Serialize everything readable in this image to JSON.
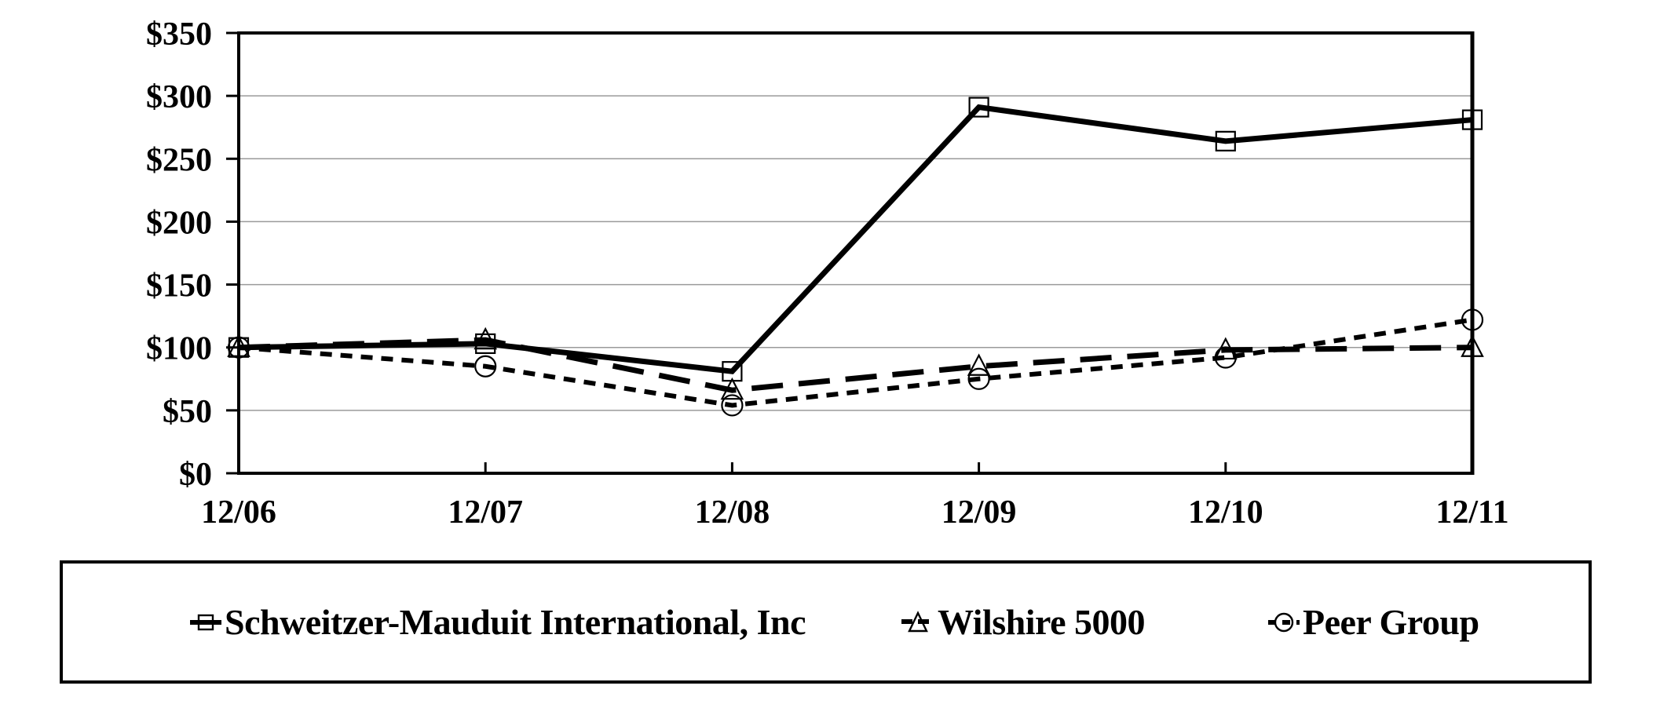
{
  "chart_data": {
    "type": "line",
    "title": "",
    "xlabel": "",
    "ylabel": "",
    "categories": [
      "12/06",
      "12/07",
      "12/08",
      "12/09",
      "12/10",
      "12/11"
    ],
    "series": [
      {
        "name": "Schweitzer-Mauduit International, Inc",
        "marker": "square",
        "line": "solid",
        "values": [
          100,
          103,
          81,
          291,
          264,
          281
        ]
      },
      {
        "name": "Wilshire 5000",
        "marker": "triangle",
        "line": "long-dash",
        "values": [
          100,
          106,
          66,
          85,
          98,
          100
        ]
      },
      {
        "name": "Peer Group",
        "marker": "circle",
        "line": "short-dash",
        "values": [
          100,
          85,
          54,
          75,
          92,
          122
        ]
      }
    ],
    "ylim": [
      0,
      350
    ],
    "y_tick_step": 50,
    "y_tick_labels": [
      "$0",
      "$50",
      "$100",
      "$150",
      "$200",
      "$250",
      "$300",
      "$350"
    ],
    "grid": true,
    "legend_position": "bottom-box",
    "colors": {
      "line": "#000000",
      "grid": "#9a9a9a",
      "frame": "#000000",
      "background": "#ffffff"
    }
  }
}
